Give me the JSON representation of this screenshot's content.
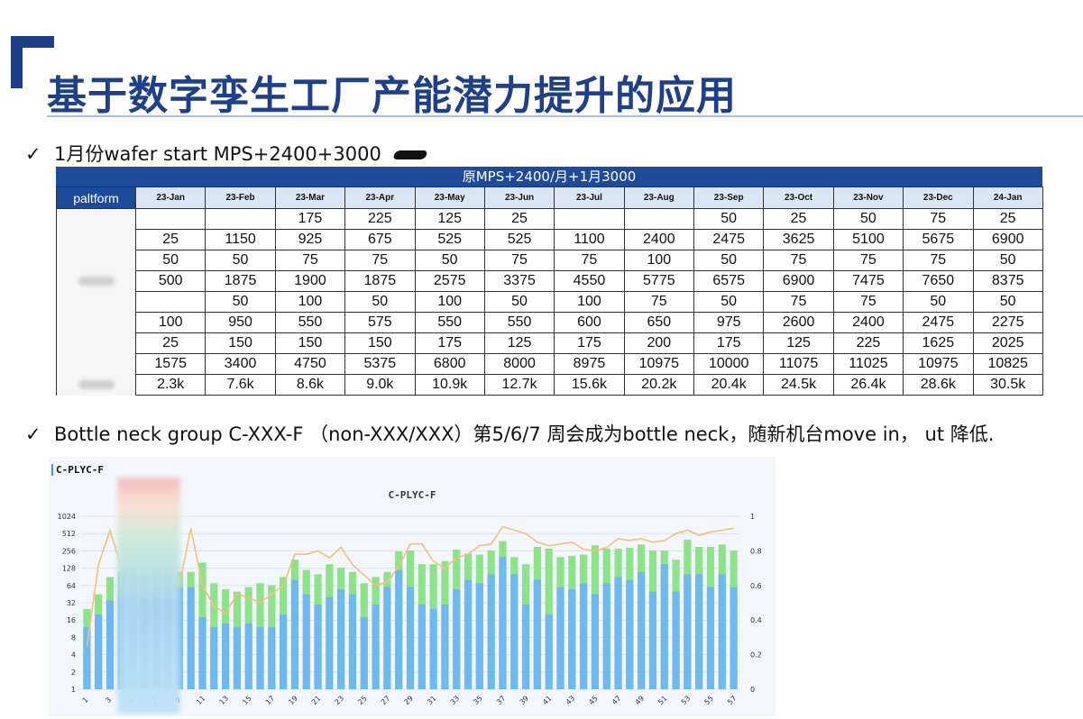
{
  "title": "基于数字孪生工厂产能潜力提升的应用",
  "bullet1": {
    "check": "✓",
    "text": "1月份wafer start MPS+2400+3000"
  },
  "table": {
    "header_banner": "原MPS+2400/月+1月3000",
    "platform_label": "paltform",
    "months": [
      "23-Jan",
      "23-Feb",
      "23-Mar",
      "23-Apr",
      "23-May",
      "23-Jun",
      "23-Jul",
      "23-Aug",
      "23-Sep",
      "23-Oct",
      "23-Nov",
      "23-Dec",
      "24-Jan"
    ],
    "rows": [
      [
        "",
        "",
        "175",
        "225",
        "125",
        "25",
        "",
        "",
        "50",
        "25",
        "50",
        "75",
        "25"
      ],
      [
        "25",
        "1150",
        "925",
        "675",
        "525",
        "525",
        "1100",
        "2400",
        "2475",
        "3625",
        "5100",
        "5675",
        "6900"
      ],
      [
        "50",
        "50",
        "75",
        "75",
        "50",
        "75",
        "75",
        "100",
        "50",
        "75",
        "75",
        "75",
        "50"
      ],
      [
        "500",
        "1875",
        "1900",
        "1875",
        "2575",
        "3375",
        "4550",
        "5775",
        "6575",
        "6900",
        "7475",
        "7650",
        "8375"
      ],
      [
        "",
        "50",
        "100",
        "50",
        "100",
        "50",
        "100",
        "75",
        "50",
        "75",
        "75",
        "50",
        "50"
      ],
      [
        "100",
        "950",
        "550",
        "575",
        "550",
        "550",
        "600",
        "650",
        "975",
        "2600",
        "2400",
        "2475",
        "2275"
      ],
      [
        "25",
        "150",
        "150",
        "150",
        "175",
        "125",
        "175",
        "200",
        "175",
        "125",
        "225",
        "1625",
        "2025"
      ],
      [
        "1575",
        "3400",
        "4750",
        "5375",
        "6800",
        "8000",
        "8975",
        "10975",
        "10000",
        "11075",
        "11025",
        "10975",
        "10825"
      ],
      [
        "2.3k",
        "7.6k",
        "8.6k",
        "9.0k",
        "10.9k",
        "12.7k",
        "15.6k",
        "20.2k",
        "20.4k",
        "24.5k",
        "26.4k",
        "28.6k",
        "30.5k"
      ]
    ]
  },
  "bullet2": {
    "check": "✓",
    "text": "Bottle neck group C-XXX-F （non-XXX/XXX）第5/6/7 周会成为bottle neck，随新机台move in， ut 降低."
  },
  "chart_panel_tag": "C-PLYC-F",
  "chart_data": {
    "type": "bar",
    "title": "C-PLYC-F",
    "xlabel": "",
    "ylabel": "",
    "y_scale": "log2",
    "ylim": [
      1,
      1024
    ],
    "y_ticks": [
      "1",
      "2",
      "4",
      "8",
      "16",
      "32",
      "64",
      "128",
      "256",
      "512",
      "1024"
    ],
    "y2lim": [
      0,
      1
    ],
    "y2_ticks": [
      "0",
      "0.2",
      "0.4",
      "0.6",
      "0.8",
      "1"
    ],
    "x_tick_labels": [
      "1",
      "3",
      "5",
      "7",
      "9",
      "11",
      "13",
      "15",
      "17",
      "19",
      "21",
      "23",
      "25",
      "27",
      "29",
      "31",
      "33",
      "35",
      "37",
      "39",
      "41",
      "43",
      "45",
      "47",
      "49",
      "51",
      "53",
      "55",
      "57"
    ],
    "x": [
      1,
      2,
      3,
      4,
      5,
      6,
      7,
      8,
      9,
      10,
      11,
      12,
      13,
      14,
      15,
      16,
      17,
      18,
      19,
      20,
      21,
      22,
      23,
      24,
      25,
      26,
      27,
      28,
      29,
      30,
      31,
      32,
      33,
      34,
      35,
      36,
      37,
      38,
      39,
      40,
      41,
      42,
      43,
      44,
      45,
      46,
      47,
      48,
      49,
      50,
      51,
      52,
      53,
      54,
      55,
      56,
      57
    ],
    "series": [
      {
        "kind": "bar-bottom",
        "color": "#6fb8f0",
        "values": [
          12,
          20,
          35,
          40,
          40,
          40,
          60,
          60,
          60,
          60,
          18,
          12,
          14,
          12,
          14,
          12,
          12,
          20,
          80,
          45,
          30,
          40,
          55,
          45,
          18,
          30,
          60,
          120,
          60,
          30,
          25,
          30,
          55,
          80,
          70,
          100,
          200,
          100,
          30,
          80,
          20,
          60,
          55,
          70,
          45,
          70,
          90,
          80,
          110,
          50,
          150,
          50,
          100,
          100,
          60,
          100,
          60
        ]
      },
      {
        "kind": "bar-top",
        "color": "#8ee28a",
        "values": [
          25,
          45,
          90,
          110,
          110,
          110,
          110,
          110,
          110,
          110,
          160,
          70,
          55,
          50,
          60,
          70,
          65,
          90,
          180,
          120,
          100,
          150,
          130,
          110,
          70,
          90,
          110,
          250,
          260,
          150,
          150,
          170,
          270,
          230,
          220,
          260,
          380,
          200,
          150,
          300,
          280,
          200,
          210,
          220,
          320,
          280,
          280,
          290,
          330,
          260,
          260,
          180,
          400,
          300,
          300,
          330,
          260
        ]
      },
      {
        "kind": "line",
        "axis": "right",
        "color": "#f5c07a",
        "values": [
          0.25,
          0.72,
          0.92,
          0.7,
          0.6,
          0.55,
          0.55,
          0.6,
          0.6,
          0.93,
          0.6,
          0.48,
          0.44,
          0.55,
          0.53,
          0.5,
          0.55,
          0.6,
          0.78,
          0.78,
          0.8,
          0.76,
          0.82,
          0.72,
          0.66,
          0.6,
          0.62,
          0.71,
          0.84,
          0.84,
          0.74,
          0.7,
          0.76,
          0.78,
          0.83,
          0.84,
          0.94,
          0.92,
          0.9,
          0.85,
          0.83,
          0.84,
          0.85,
          0.81,
          0.8,
          0.82,
          0.87,
          0.86,
          0.87,
          0.85,
          0.86,
          0.9,
          0.92,
          0.89,
          0.91,
          0.92,
          0.93
        ]
      }
    ]
  }
}
